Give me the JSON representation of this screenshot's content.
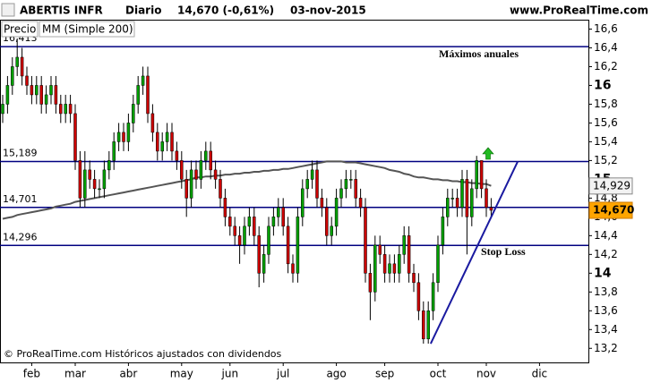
{
  "chart_data": {
    "type": "candlestick",
    "header": {
      "symbol": "ABERTIS INFR",
      "period": "Diario",
      "price": "14,670 (-0,61%)",
      "date": "03-nov-2015",
      "site": "www.ProRealTime.com"
    },
    "footer": "© ProRealTime.com  Históricos ajustados con dividendos",
    "categories": [
      null,
      null,
      null,
      null,
      null,
      null,
      "feb",
      null,
      null,
      null,
      null,
      null,
      null,
      null,
      null,
      "mar",
      null,
      null,
      null,
      null,
      null,
      null,
      null,
      null,
      null,
      null,
      "abr",
      null,
      null,
      null,
      null,
      null,
      null,
      null,
      null,
      null,
      null,
      "may",
      null,
      null,
      null,
      null,
      null,
      null,
      null,
      null,
      null,
      "jun",
      null,
      null,
      null,
      null,
      null,
      null,
      null,
      null,
      null,
      null,
      "jul",
      null,
      null,
      null,
      null,
      null,
      null,
      null,
      null,
      null,
      null,
      "ago",
      null,
      null,
      null,
      null,
      null,
      null,
      null,
      null,
      null,
      "sep",
      null,
      null,
      null,
      null,
      null,
      null,
      null,
      null,
      null,
      null,
      "oct",
      null,
      null,
      null,
      null,
      null,
      null,
      null,
      null,
      null,
      "nov",
      null,
      null,
      null,
      null,
      null,
      null,
      null,
      null,
      null,
      null,
      "dic",
      null,
      null,
      null,
      null,
      null,
      null,
      null,
      null,
      null
    ],
    "candles": {
      "name": "Precio",
      "up_color": "#00a000",
      "down_color": "#cc0000",
      "open": [
        15.7,
        15.8,
        16.0,
        16.2,
        16.3,
        16.1,
        16.0,
        15.9,
        16.0,
        15.8,
        15.9,
        16.0,
        15.8,
        15.7,
        15.8,
        15.7,
        15.2,
        14.8,
        15.1,
        15.0,
        14.9,
        14.9,
        15.1,
        15.2,
        15.4,
        15.5,
        15.4,
        15.6,
        15.8,
        16.0,
        16.1,
        15.7,
        15.5,
        15.3,
        15.4,
        15.5,
        15.3,
        15.2,
        15.0,
        14.8,
        15.1,
        15.0,
        15.2,
        15.3,
        15.1,
        15.0,
        14.8,
        14.6,
        14.5,
        14.4,
        14.3,
        14.5,
        14.6,
        14.4,
        14.0,
        14.2,
        14.5,
        14.6,
        14.7,
        14.5,
        14.1,
        14.0,
        14.6,
        14.9,
        15.0,
        15.1,
        14.8,
        14.7,
        14.4,
        14.5,
        14.8,
        14.9,
        15.0,
        15.0,
        14.8,
        14.7,
        14.0,
        13.8,
        14.3,
        14.2,
        14.0,
        14.1,
        14.0,
        14.2,
        14.4,
        14.0,
        13.9,
        13.6,
        13.3,
        13.6,
        13.9,
        14.3,
        14.6,
        14.8,
        14.8,
        14.7,
        15.0,
        14.6,
        14.9,
        15.2,
        14.9,
        14.7,
        null,
        null,
        null,
        null,
        null,
        null,
        null,
        null,
        null,
        null,
        null,
        null,
        null,
        null,
        null,
        null,
        null,
        null,
        null
      ],
      "high": [
        15.9,
        16.1,
        16.3,
        16.5,
        16.4,
        16.2,
        16.1,
        16.1,
        16.1,
        16.0,
        16.1,
        16.1,
        15.9,
        15.9,
        15.9,
        15.8,
        15.3,
        15.3,
        15.2,
        15.1,
        15.0,
        15.2,
        15.3,
        15.5,
        15.6,
        15.6,
        15.7,
        15.9,
        16.1,
        16.2,
        16.2,
        15.8,
        15.6,
        15.5,
        15.6,
        15.6,
        15.4,
        15.3,
        15.1,
        15.2,
        15.2,
        15.3,
        15.4,
        15.4,
        15.2,
        15.1,
        14.9,
        14.7,
        14.6,
        14.5,
        14.6,
        14.7,
        14.7,
        14.5,
        14.3,
        14.6,
        14.7,
        14.8,
        14.8,
        14.6,
        14.2,
        14.7,
        15.0,
        15.1,
        15.2,
        15.2,
        14.9,
        14.8,
        14.6,
        14.9,
        15.0,
        15.1,
        15.1,
        15.1,
        14.9,
        14.8,
        14.1,
        14.4,
        14.4,
        14.3,
        14.2,
        14.2,
        14.3,
        14.5,
        14.5,
        14.1,
        14.0,
        13.7,
        13.7,
        14.0,
        14.4,
        14.7,
        14.9,
        14.9,
        14.9,
        15.1,
        15.1,
        15.0,
        15.25,
        15.2,
        15.0,
        14.8,
        null,
        null,
        null,
        null,
        null,
        null,
        null,
        null,
        null,
        null,
        null,
        null,
        null,
        null,
        null,
        null,
        null,
        null,
        null
      ],
      "low": [
        15.6,
        15.7,
        15.9,
        16.1,
        16.0,
        15.9,
        15.8,
        15.8,
        15.7,
        15.7,
        15.8,
        15.7,
        15.6,
        15.6,
        15.6,
        15.1,
        14.7,
        14.7,
        14.9,
        14.8,
        14.8,
        14.8,
        15.0,
        15.1,
        15.3,
        15.3,
        15.3,
        15.5,
        15.7,
        15.9,
        15.6,
        15.4,
        15.2,
        15.2,
        15.3,
        15.2,
        15.1,
        14.9,
        14.6,
        14.7,
        14.9,
        14.9,
        15.1,
        15.0,
        14.9,
        14.7,
        14.5,
        14.4,
        14.3,
        14.1,
        14.2,
        14.4,
        14.3,
        13.85,
        13.9,
        14.1,
        14.4,
        14.5,
        14.4,
        14.0,
        13.9,
        13.9,
        14.5,
        14.8,
        14.9,
        14.7,
        14.6,
        14.3,
        14.3,
        14.4,
        14.7,
        14.8,
        14.9,
        14.7,
        14.6,
        13.9,
        13.5,
        13.7,
        14.1,
        13.9,
        13.9,
        13.9,
        13.9,
        14.1,
        13.9,
        13.8,
        13.5,
        13.25,
        13.25,
        13.5,
        13.8,
        14.2,
        14.5,
        14.7,
        14.6,
        14.6,
        14.2,
        14.5,
        14.8,
        14.8,
        14.6,
        14.6,
        null,
        null,
        null,
        null,
        null,
        null,
        null,
        null,
        null,
        null,
        null,
        null,
        null,
        null,
        null,
        null,
        null,
        null,
        null
      ],
      "close": [
        15.8,
        16.0,
        16.2,
        16.3,
        16.1,
        16.0,
        15.9,
        16.0,
        15.8,
        15.9,
        16.0,
        15.8,
        15.7,
        15.8,
        15.7,
        15.2,
        14.8,
        15.1,
        15.0,
        14.9,
        14.9,
        15.1,
        15.2,
        15.4,
        15.5,
        15.4,
        15.6,
        15.8,
        16.0,
        16.1,
        15.7,
        15.5,
        15.3,
        15.4,
        15.5,
        15.3,
        15.2,
        15.0,
        14.8,
        15.1,
        15.0,
        15.2,
        15.3,
        15.1,
        15.0,
        14.8,
        14.6,
        14.5,
        14.4,
        14.3,
        14.5,
        14.6,
        14.4,
        14.0,
        14.2,
        14.5,
        14.6,
        14.7,
        14.5,
        14.1,
        14.0,
        14.6,
        14.9,
        15.0,
        15.1,
        14.8,
        14.7,
        14.4,
        14.5,
        14.8,
        14.9,
        15.0,
        15.0,
        14.8,
        14.7,
        14.0,
        13.8,
        14.3,
        14.2,
        14.0,
        14.1,
        14.0,
        14.2,
        14.4,
        14.0,
        13.9,
        13.6,
        13.3,
        13.6,
        13.9,
        14.3,
        14.6,
        14.8,
        14.8,
        14.7,
        15.0,
        14.6,
        14.9,
        15.2,
        14.9,
        14.7,
        14.67,
        null,
        null,
        null,
        null,
        null,
        null,
        null,
        null,
        null,
        null,
        null,
        null,
        null,
        null,
        null,
        null,
        null,
        null,
        null
      ],
      "last_label": {
        "value": 14.67,
        "label": "14,670"
      }
    },
    "series": [
      {
        "name": "MM (Simple 200)",
        "color": "#555555",
        "values": [
          14.58,
          14.59,
          14.6,
          14.62,
          14.63,
          14.64,
          14.65,
          14.66,
          14.67,
          14.68,
          14.69,
          14.71,
          14.72,
          14.73,
          14.74,
          14.76,
          14.77,
          14.78,
          14.79,
          14.8,
          14.81,
          14.82,
          14.83,
          14.84,
          14.85,
          14.86,
          14.87,
          14.88,
          14.89,
          14.9,
          14.91,
          14.92,
          14.93,
          14.94,
          14.95,
          14.96,
          14.97,
          14.98,
          14.99,
          15.0,
          15.02,
          15.02,
          15.03,
          15.03,
          15.04,
          15.04,
          15.05,
          15.05,
          15.06,
          15.06,
          15.07,
          15.07,
          15.08,
          15.08,
          15.09,
          15.09,
          15.1,
          15.1,
          15.11,
          15.11,
          15.12,
          15.13,
          15.14,
          15.15,
          15.16,
          15.17,
          15.18,
          15.19,
          15.19,
          15.19,
          15.19,
          15.18,
          15.18,
          15.18,
          15.17,
          15.16,
          15.15,
          15.14,
          15.13,
          15.12,
          15.1,
          15.09,
          15.08,
          15.06,
          15.05,
          15.03,
          15.02,
          15.02,
          15.01,
          15.0,
          15.0,
          14.99,
          14.99,
          14.98,
          14.98,
          14.97,
          14.97,
          14.96,
          14.96,
          14.95,
          14.95,
          14.93,
          null,
          null,
          null,
          null,
          null,
          null,
          null,
          null,
          null,
          null,
          null,
          null,
          null,
          null,
          null,
          null,
          null,
          null,
          null
        ],
        "last_label": {
          "value": 14.929,
          "label": "14,929"
        }
      }
    ],
    "levels": [
      {
        "value": 16.413,
        "label": "16,413"
      },
      {
        "value": 15.189,
        "label": "15,189"
      },
      {
        "value": 14.701,
        "label": "14,701"
      },
      {
        "value": 14.296,
        "label": "14,296"
      }
    ],
    "level_color": "#000080",
    "annotations": [
      {
        "text": "Máximos anuales",
        "value": 16.413
      },
      {
        "text": "Stop Loss",
        "value": 14.296
      }
    ],
    "trendline": {
      "values": [
        13.25,
        15.19
      ],
      "color": "#1a1aa0"
    },
    "ylim": [
      13.05,
      16.7
    ],
    "yticks": [
      {
        "value": 13.2,
        "label": "13,2"
      },
      {
        "value": 13.4,
        "label": "13,4"
      },
      {
        "value": 13.6,
        "label": "13,6"
      },
      {
        "value": 13.8,
        "label": "13,8"
      },
      14,
      {
        "value": 14.2,
        "label": "14,2"
      },
      {
        "value": 14.4,
        "label": "14,4"
      },
      {
        "value": 14.6,
        "label": "14,6"
      },
      {
        "value": 14.8,
        "label": "14,8"
      },
      15,
      {
        "value": 15.2,
        "label": "15,2"
      },
      {
        "value": 15.4,
        "label": "15,4"
      },
      {
        "value": 15.6,
        "label": "15,6"
      },
      {
        "value": 15.8,
        "label": "15,8"
      },
      16,
      {
        "value": 16.2,
        "label": "16,2"
      },
      {
        "value": 16.4,
        "label": "16,4"
      },
      {
        "value": 16.6,
        "label": "16,6"
      }
    ]
  }
}
